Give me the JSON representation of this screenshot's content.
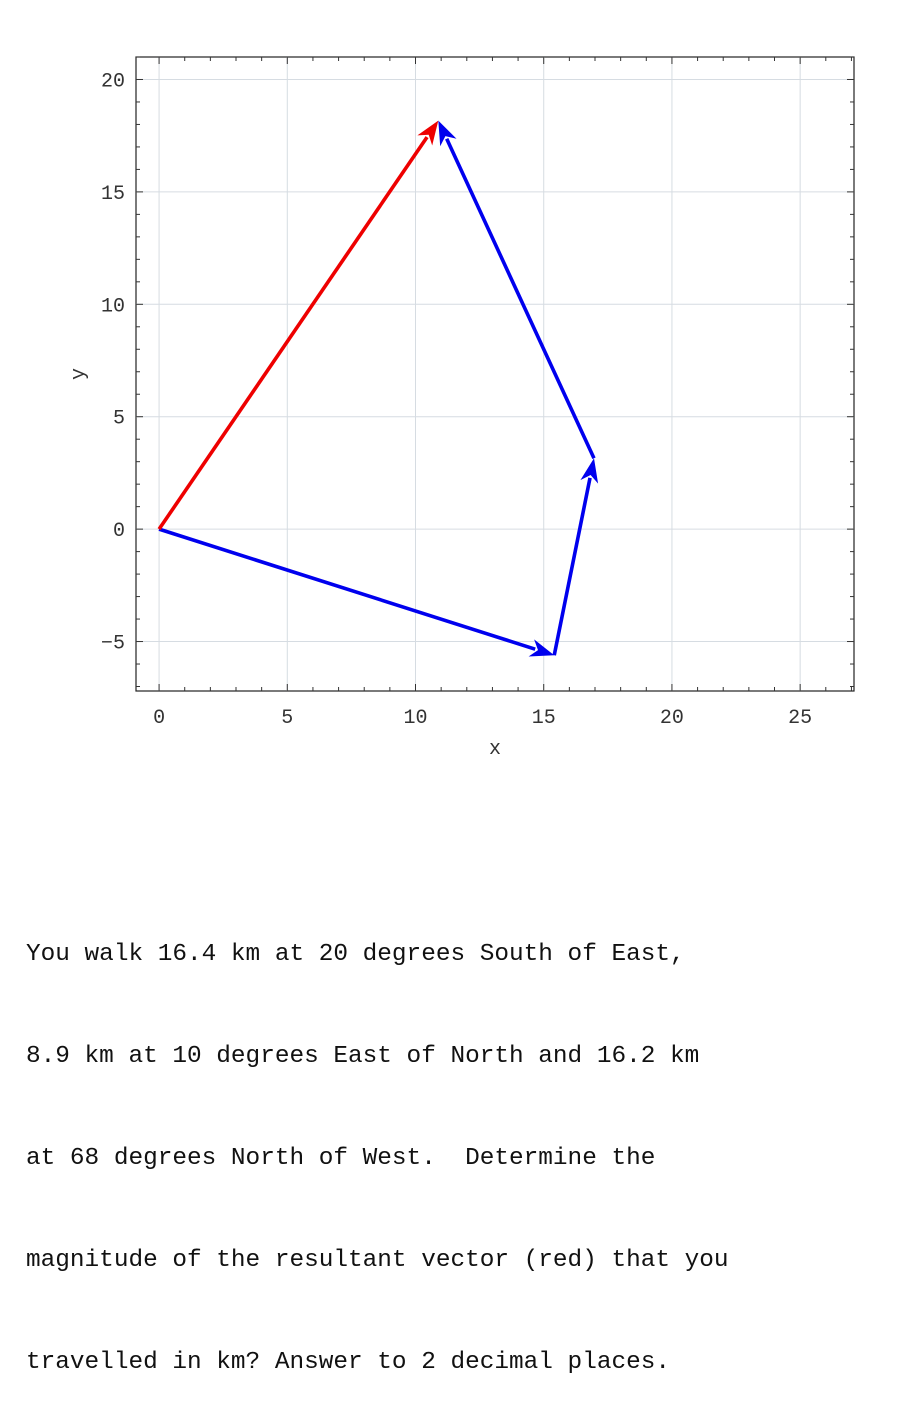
{
  "chart_data": {
    "type": "line",
    "title": "",
    "xlabel": "x",
    "ylabel": "y",
    "xlim": [
      -0.9,
      27.1
    ],
    "ylim": [
      -7.2,
      21
    ],
    "xticks": [
      0,
      5,
      10,
      15,
      20,
      25
    ],
    "yticks": [
      -5,
      0,
      5,
      10,
      15,
      20
    ],
    "grid": true,
    "series": [
      {
        "role": "component",
        "color": "#0000ee",
        "from": [
          0,
          0
        ],
        "to": [
          15.41,
          -5.61
        ]
      },
      {
        "role": "component",
        "color": "#0000ee",
        "from": [
          15.41,
          -5.61
        ],
        "to": [
          16.96,
          3.15
        ]
      },
      {
        "role": "component",
        "color": "#0000ee",
        "from": [
          16.96,
          3.15
        ],
        "to": [
          10.89,
          18.17
        ]
      },
      {
        "role": "resultant",
        "color": "#ee0000",
        "from": [
          0,
          0
        ],
        "to": [
          10.89,
          18.17
        ]
      }
    ]
  },
  "question": {
    "lines": [
      "You walk 16.4 km at 20 degrees South of East,",
      "8.9 km at 10 degrees East of North and 16.2 km",
      "at 68 degrees North of West.  Determine the",
      "magnitude of the resultant vector (red) that you",
      "travelled in km? Answer to 2 decimal places."
    ]
  }
}
